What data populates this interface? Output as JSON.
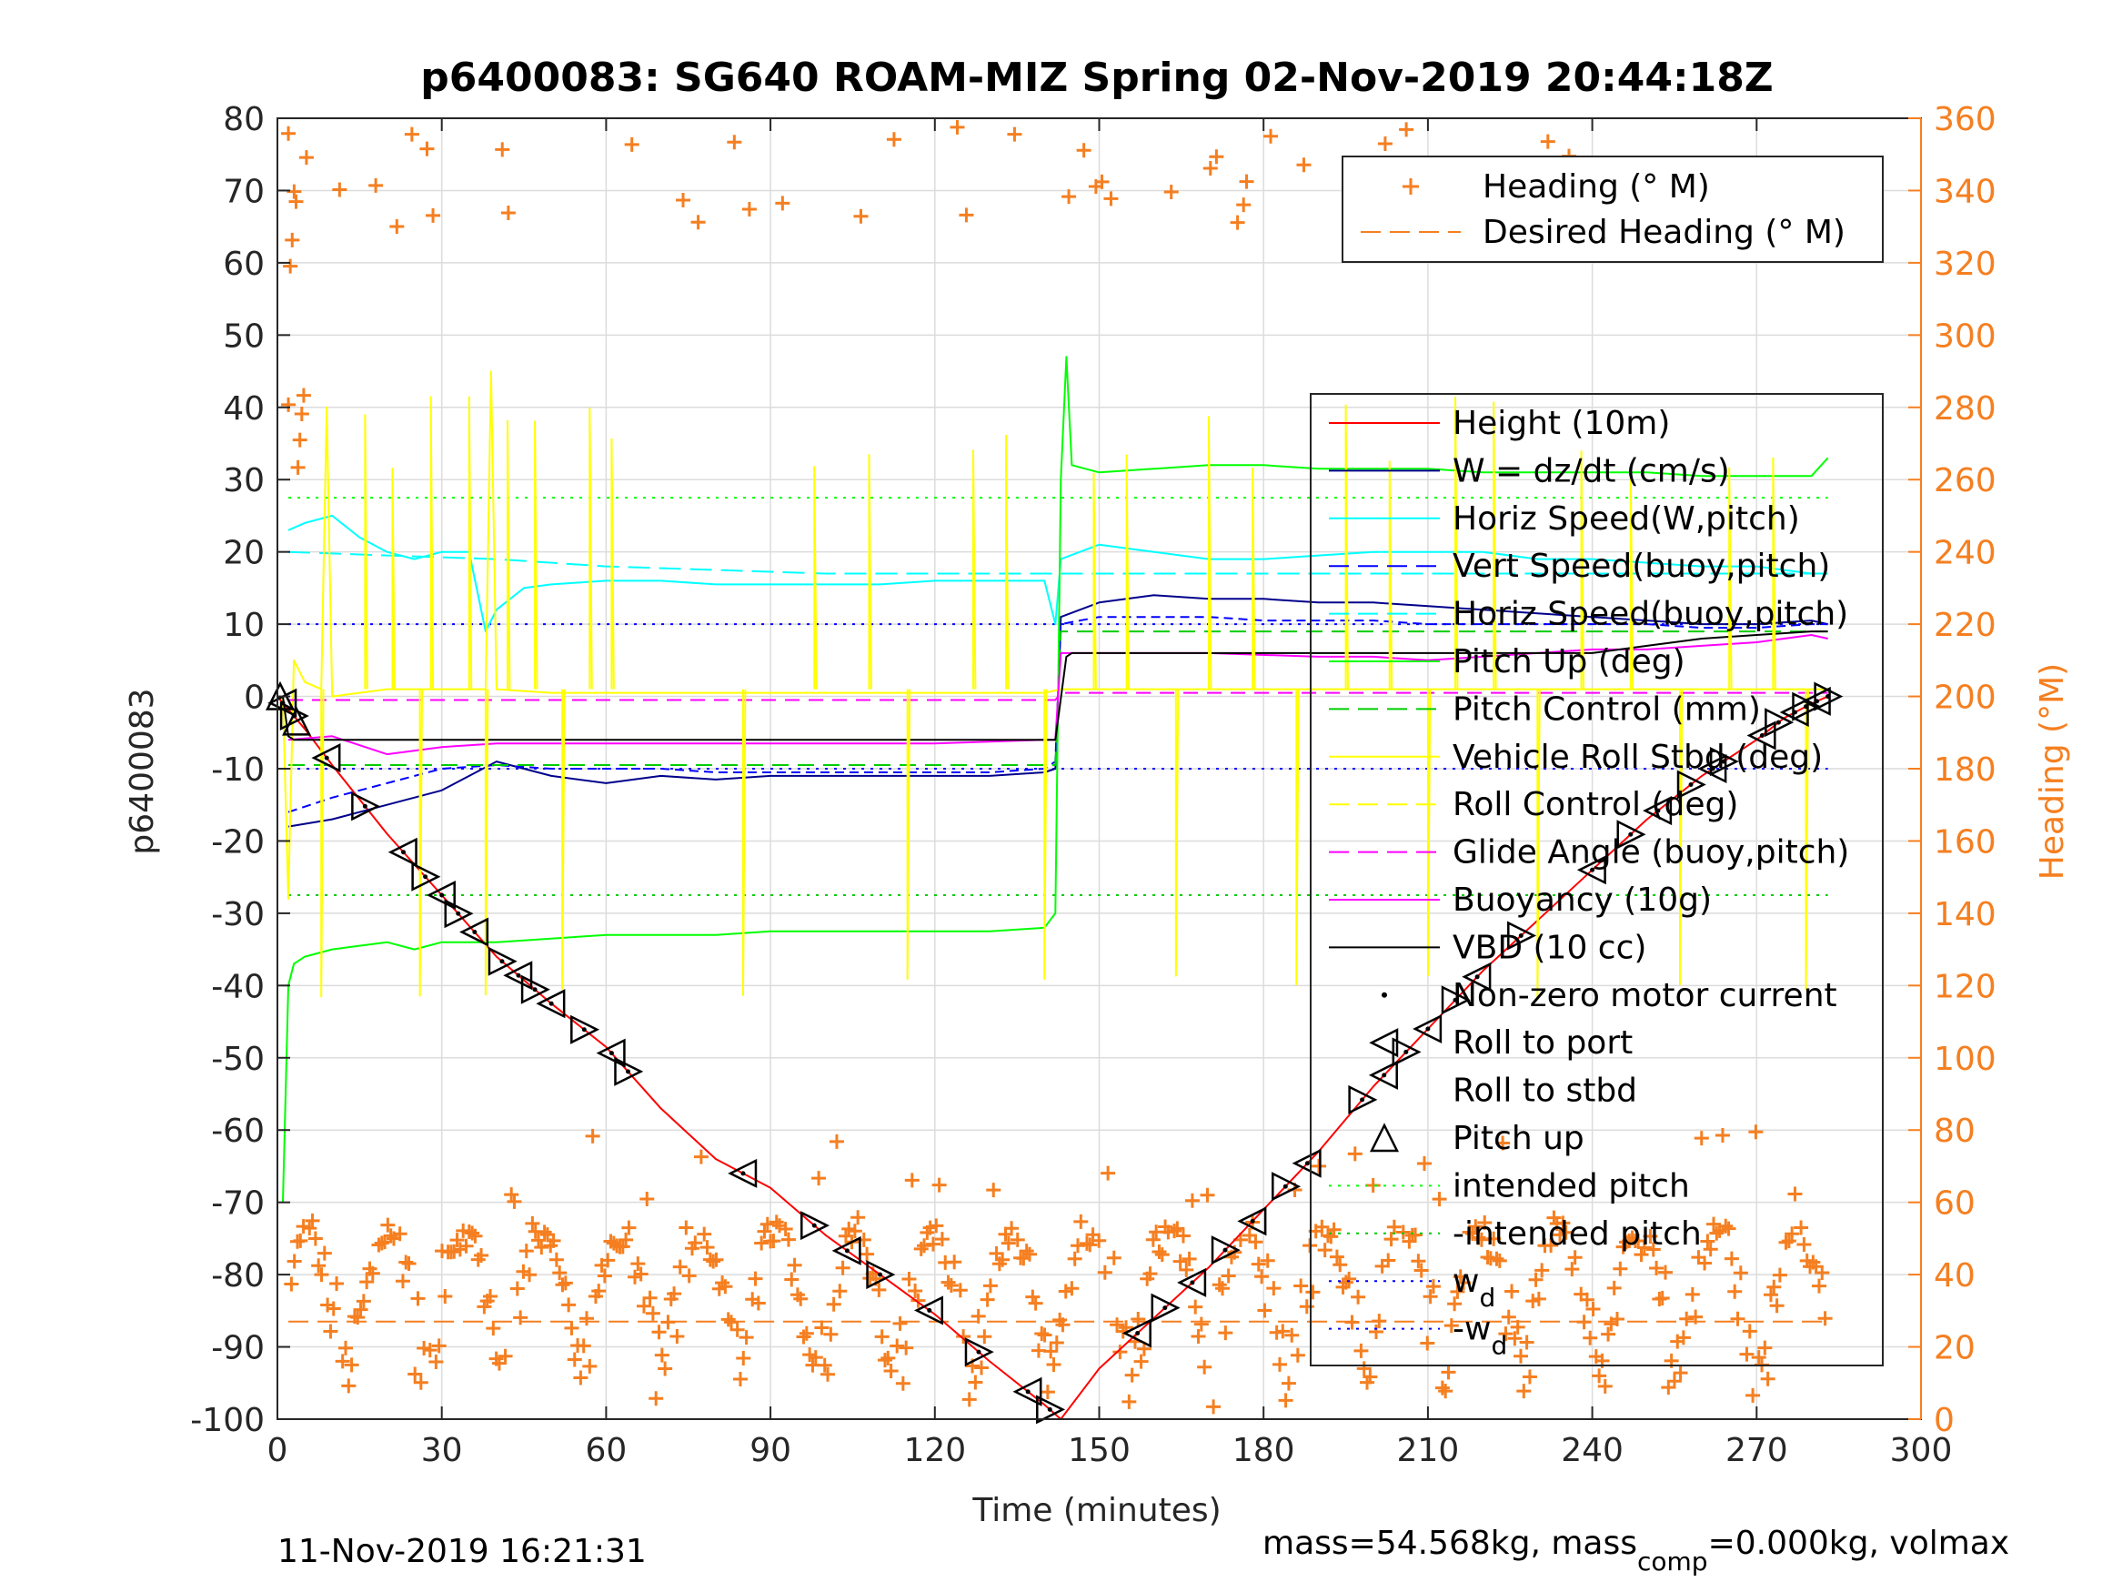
{
  "chart_data": {
    "type": "line",
    "title": "p6400083: SG640 ROAM-MIZ Spring 02-Nov-2019 20:44:18Z",
    "xlabel": "Time (minutes)",
    "ylabel": "p6400083",
    "y2label": "Heading (°M)",
    "xlim": [
      0,
      300
    ],
    "ylim": [
      -100,
      80
    ],
    "y2lim": [
      0,
      360
    ],
    "xticks": [
      0,
      30,
      60,
      90,
      120,
      150,
      180,
      210,
      240,
      270,
      300
    ],
    "yticks": [
      -100,
      -90,
      -80,
      -70,
      -60,
      -50,
      -40,
      -30,
      -20,
      -10,
      0,
      10,
      20,
      30,
      40,
      50,
      60,
      70,
      80
    ],
    "y2ticks": [
      0,
      20,
      40,
      60,
      80,
      100,
      120,
      140,
      160,
      180,
      200,
      220,
      240,
      260,
      280,
      300,
      320,
      340,
      360
    ],
    "grid": true,
    "footer_left": "11-Nov-2019 16:21:31",
    "footer_right": {
      "prefix": "mass=54.568kg, mass",
      "subscript": "comp",
      "suffix": "=0.000kg, volmax"
    },
    "legend_heading": [
      {
        "label": "Heading (° M)",
        "color": "#F57F20",
        "style": "plus"
      },
      {
        "label": "Desired Heading (° M)",
        "color": "#F57F20",
        "style": "dash"
      }
    ],
    "legend_main": [
      {
        "label": "Height (10m)",
        "color": "#FF0000",
        "style": "solid"
      },
      {
        "label": "W = dz/dt (cm/s)",
        "color": "#00008B",
        "style": "solid"
      },
      {
        "label": "Horiz Speed(W,pitch)",
        "color": "#00FFFF",
        "style": "solid"
      },
      {
        "label": "Vert Speed(buoy,pitch)",
        "color": "#0000FF",
        "style": "dash"
      },
      {
        "label": "Horiz Speed(buoy,pitch)",
        "color": "#00FFFF",
        "style": "dash"
      },
      {
        "label": "Pitch Up (deg)",
        "color": "#00FF00",
        "style": "solid"
      },
      {
        "label": "Pitch Control (mm)",
        "color": "#00CC00",
        "style": "dash"
      },
      {
        "label": "Vehicle Roll Stbd (deg)",
        "color": "#FFFF00",
        "style": "solid"
      },
      {
        "label": "Roll Control (deg)",
        "color": "#FFFF00",
        "style": "dash"
      },
      {
        "label": "Glide Angle (buoy,pitch)",
        "color": "#FF00FF",
        "style": "dash"
      },
      {
        "label": "Buoyancy (10g)",
        "color": "#FF00FF",
        "style": "solid"
      },
      {
        "label": "VBD (10 cc)",
        "color": "#000000",
        "style": "solid"
      },
      {
        "label": "Non-zero motor current",
        "color": "#000000",
        "style": "dot"
      },
      {
        "label": "Roll to port",
        "color": "#000000",
        "style": "tri-left"
      },
      {
        "label": "Roll to stbd",
        "color": "#000000",
        "style": "tri-right"
      },
      {
        "label": "Pitch up",
        "color": "#000000",
        "style": "tri-up"
      },
      {
        "label": "intended pitch",
        "color": "#00FF00",
        "style": "dotted"
      },
      {
        "label": "-intended pitch",
        "color": "#00CC00",
        "style": "dotted"
      },
      {
        "label": "w_d",
        "text": "w",
        "sub": "d",
        "color": "#0000FF",
        "style": "dotted"
      },
      {
        "label": "-w_d",
        "text": "-w",
        "sub": "d",
        "color": "#0000FF",
        "style": "dotted"
      }
    ],
    "reference_lines": [
      {
        "name": "intended-pitch",
        "y": 27.5,
        "color": "#00FF00"
      },
      {
        "name": "neg-intended-pitch",
        "y": -27.5,
        "color": "#00CC00"
      },
      {
        "name": "w-d",
        "y": 10,
        "color": "#0000FF"
      },
      {
        "name": "neg-w-d",
        "y": -10,
        "color": "#0000FF"
      }
    ],
    "series": [
      {
        "name": "Height (10m)",
        "color": "#FF0000",
        "x": [
          0,
          5,
          10,
          20,
          30,
          40,
          50,
          60,
          70,
          80,
          90,
          100,
          110,
          120,
          130,
          140,
          143,
          150,
          160,
          170,
          180,
          190,
          200,
          210,
          220,
          230,
          240,
          250,
          260,
          270,
          275,
          280,
          283
        ],
        "y": [
          0,
          -4.5,
          -9.5,
          -19,
          -27.5,
          -36,
          -42.5,
          -48.5,
          -57,
          -64,
          -68,
          -74.5,
          -80,
          -85.5,
          -92,
          -98,
          -100,
          -93,
          -86,
          -79,
          -71,
          -63,
          -54,
          -46,
          -38,
          -31,
          -24,
          -17,
          -11,
          -6,
          -3,
          -1,
          0
        ]
      },
      {
        "name": "W = dz/dt (cm/s)",
        "color": "#00008B",
        "x": [
          2,
          10,
          20,
          30,
          40,
          50,
          60,
          70,
          80,
          90,
          100,
          110,
          120,
          130,
          140,
          142,
          143,
          150,
          160,
          170,
          180,
          190,
          200,
          210,
          220,
          230,
          240,
          250,
          260,
          270,
          280,
          283
        ],
        "y": [
          -18,
          -17,
          -15,
          -13,
          -9,
          -11,
          -12,
          -11,
          -11.5,
          -11,
          -11,
          -11,
          -11,
          -11,
          -10.5,
          -10,
          11,
          13,
          14,
          13.5,
          13.5,
          13,
          13,
          12.5,
          12,
          11.5,
          11,
          10.5,
          10,
          10,
          10.5,
          10
        ]
      },
      {
        "name": "Horiz Speed(W,pitch)",
        "color": "#00FFFF",
        "x": [
          2,
          5,
          10,
          15,
          20,
          25,
          30,
          35,
          38,
          40,
          45,
          50,
          60,
          70,
          80,
          90,
          100,
          110,
          120,
          130,
          140,
          142,
          143,
          150,
          160,
          170,
          180,
          190,
          200,
          210,
          220,
          230,
          240,
          250,
          260,
          270,
          280,
          283
        ],
        "y": [
          23,
          24,
          25,
          22,
          20,
          19,
          20,
          20,
          9,
          12,
          15,
          15.5,
          16,
          16,
          15.5,
          15.5,
          15.5,
          15.5,
          16,
          16,
          16,
          10,
          19,
          21,
          20,
          19,
          19,
          19.5,
          20,
          20,
          20,
          19,
          19,
          18.5,
          18,
          18,
          17,
          17
        ]
      },
      {
        "name": "Vert Speed(buoy,pitch)",
        "color": "#0000FF",
        "dash": "10,6",
        "x": [
          2,
          10,
          20,
          30,
          40,
          50,
          60,
          70,
          80,
          90,
          100,
          110,
          120,
          130,
          140,
          142,
          143,
          150,
          160,
          170,
          180,
          190,
          200,
          210,
          220,
          230,
          240,
          250,
          260,
          270,
          280,
          283
        ],
        "y": [
          -16,
          -14,
          -12,
          -10,
          -9.5,
          -10,
          -10,
          -10,
          -10.5,
          -10.5,
          -10.5,
          -10.5,
          -10.5,
          -10.5,
          -10,
          -9,
          10,
          11,
          11,
          11,
          10.5,
          10.5,
          10.5,
          10,
          10,
          10,
          10,
          10,
          9.5,
          9.5,
          10,
          10
        ]
      },
      {
        "name": "Horiz Speed(buoy,pitch)",
        "color": "#00FFFF",
        "dash": "24,10",
        "x": [
          2,
          20,
          40,
          60,
          80,
          100,
          120,
          140,
          143,
          160,
          180,
          200,
          220,
          240,
          260,
          283
        ],
        "y": [
          20,
          19.5,
          19,
          18,
          17.5,
          17,
          17,
          17,
          17,
          17,
          17,
          17,
          17,
          17,
          17,
          17
        ]
      },
      {
        "name": "Pitch Up (deg)",
        "color": "#00FF00",
        "x": [
          1,
          2,
          3,
          5,
          10,
          15,
          20,
          25,
          30,
          40,
          50,
          60,
          70,
          80,
          90,
          100,
          110,
          120,
          130,
          140,
          142,
          143,
          144,
          145,
          150,
          160,
          170,
          180,
          190,
          200,
          210,
          220,
          230,
          240,
          250,
          260,
          270,
          280,
          283
        ],
        "y": [
          -70,
          -40,
          -37,
          -36,
          -35,
          -34.5,
          -34,
          -35,
          -34,
          -34,
          -33.5,
          -33,
          -33,
          -33,
          -32.5,
          -32.5,
          -32.5,
          -32.5,
          -32.5,
          -32,
          -30,
          30,
          47,
          32,
          31,
          31.5,
          32,
          32,
          31.5,
          31.5,
          31.5,
          31,
          31,
          31,
          31,
          30.5,
          30.5,
          30.5,
          33
        ]
      },
      {
        "name": "Pitch Control (mm)",
        "color": "#00CC00",
        "dash": "18,10",
        "x": [
          2,
          20,
          40,
          60,
          80,
          100,
          120,
          140,
          142,
          143,
          160,
          180,
          200,
          220,
          240,
          260,
          283
        ],
        "y": [
          -9.5,
          -9.5,
          -9.5,
          -9.5,
          -9.5,
          -9.5,
          -9.5,
          -9.5,
          -9.5,
          9,
          9,
          9,
          9,
          9,
          9,
          9,
          9
        ]
      },
      {
        "name": "Vehicle Roll Stbd (deg)",
        "color": "#FFFF00",
        "x": [
          1,
          2,
          3,
          5,
          8,
          9,
          10,
          20,
          30,
          38,
          39,
          40,
          50,
          60,
          80,
          100,
          120,
          140,
          143,
          150,
          160,
          170,
          180,
          190,
          200,
          210,
          220,
          230,
          240,
          250,
          260,
          270,
          280,
          283
        ],
        "y": [
          0,
          -28,
          5,
          2,
          1,
          40,
          0,
          1,
          1,
          1,
          45,
          1,
          0.5,
          0.5,
          0.5,
          0.5,
          0.5,
          0.5,
          1,
          1,
          1,
          1,
          1,
          1,
          1,
          1,
          1,
          1,
          1,
          1,
          1,
          1,
          1,
          1
        ]
      },
      {
        "name": "Glide Angle (buoy,pitch)",
        "color": "#FF00FF",
        "dash": "16,10",
        "x": [
          2,
          20,
          40,
          60,
          80,
          100,
          120,
          140,
          142,
          143,
          160,
          180,
          200,
          220,
          240,
          260,
          283
        ],
        "y": [
          -0.5,
          -0.5,
          -0.5,
          -0.5,
          -0.5,
          -0.5,
          -0.5,
          -0.5,
          -0.5,
          0.5,
          0.5,
          0.5,
          0.5,
          0.5,
          0.5,
          0.5,
          0.5
        ]
      },
      {
        "name": "Buoyancy (10g)",
        "color": "#FF00FF",
        "x": [
          2,
          10,
          20,
          30,
          40,
          60,
          80,
          100,
          120,
          140,
          142,
          143,
          150,
          170,
          190,
          200,
          210,
          220,
          230,
          240,
          250,
          260,
          270,
          280,
          283
        ],
        "y": [
          -6,
          -5.5,
          -8,
          -7,
          -6.5,
          -6.5,
          -6.5,
          -6.5,
          -6.5,
          -6,
          -6,
          6,
          6,
          6,
          5.5,
          5.5,
          5,
          5.5,
          6,
          6.5,
          6.5,
          7,
          7.5,
          8.5,
          8
        ]
      },
      {
        "name": "VBD (10 cc)",
        "color": "#000000",
        "x": [
          1,
          2,
          3,
          10,
          30,
          60,
          90,
          120,
          140,
          142,
          144,
          145,
          150,
          180,
          210,
          240,
          250,
          260,
          270,
          280,
          283
        ],
        "y": [
          0,
          -5.5,
          -6,
          -6,
          -6,
          -6,
          -6,
          -6,
          -6,
          -6,
          5.5,
          6,
          6,
          6,
          6,
          6,
          7,
          8,
          8.5,
          9,
          9
        ]
      }
    ],
    "desired_heading": {
      "value": 27,
      "x_range": [
        2,
        283
      ],
      "color": "#F57F20"
    }
  }
}
